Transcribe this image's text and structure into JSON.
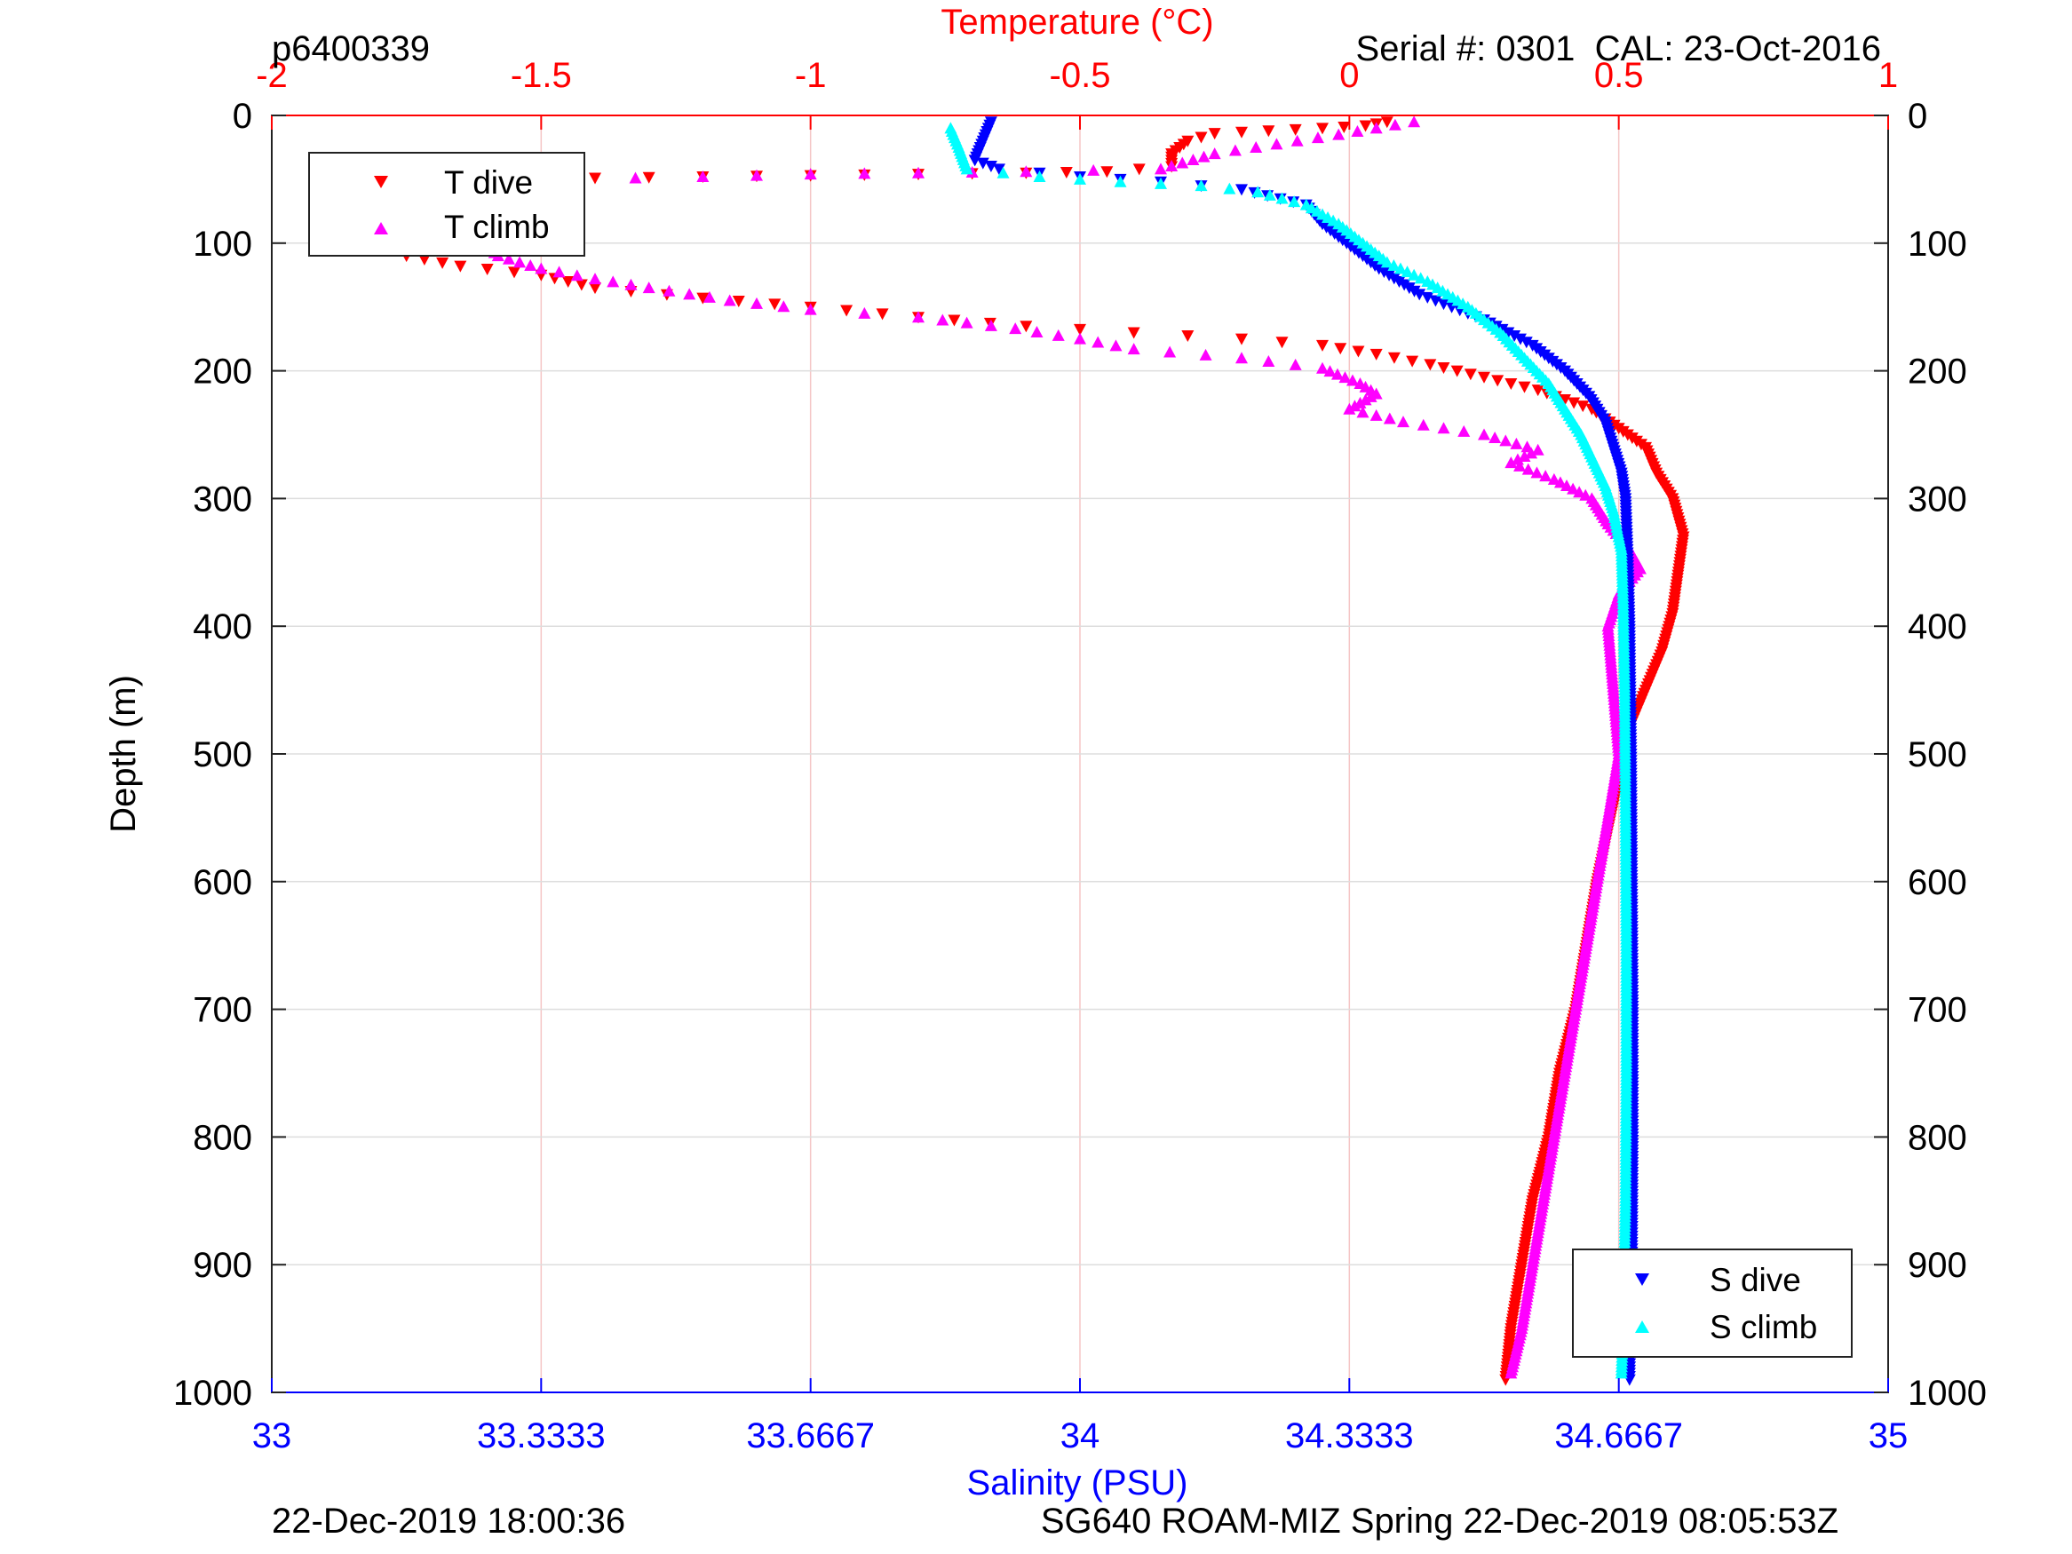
{
  "header": {
    "top_left": "p6400339",
    "top_right": "Serial #: 0301  CAL: 23-Oct-2016"
  },
  "footer": {
    "left": "22-Dec-2019 18:00:36",
    "right": "SG640 ROAM-MIZ Spring 22-Dec-2019 08:05:53Z"
  },
  "colors": {
    "temperature_axis": "#ff0000",
    "salinity_axis": "#0000ff",
    "t_dive": "#ff0000",
    "t_climb": "#ff00ff",
    "s_dive": "#0000ff",
    "s_climb": "#00ffff",
    "grid_temperature": "#f5c6c6",
    "grid_depth": "#dddddd"
  },
  "chart_data": {
    "type": "scatter",
    "top_axis_label": "Temperature (°C)",
    "bottom_axis_label": "Salinity (PSU)",
    "ylabel": "Depth (m)",
    "temperature_lim": [
      -2,
      1
    ],
    "salinity_lim": [
      33,
      35
    ],
    "ylim": [
      0,
      1000
    ],
    "y_reversed": true,
    "temperature_ticks": [
      "-2",
      "-1.5",
      "-1",
      "-0.5",
      "0",
      "0.5",
      "1"
    ],
    "salinity_ticks": [
      "33",
      "33.3333",
      "33.6667",
      "34",
      "34.3333",
      "34.6667",
      "35"
    ],
    "depth_ticks": [
      "0",
      "100",
      "200",
      "300",
      "400",
      "500",
      "600",
      "700",
      "800",
      "900",
      "1000"
    ],
    "grid": "vertical temperature gridlines, horizontal depth gridlines",
    "legends": [
      {
        "placement": "top-left",
        "entries": [
          "T dive",
          "T climb"
        ]
      },
      {
        "placement": "bottom-right",
        "entries": [
          "S dive",
          "S climb"
        ]
      }
    ],
    "series": [
      {
        "name": "T dive",
        "axis": "temperature",
        "marker": "triangle-down",
        "points": [
          [
            0.07,
            5
          ],
          [
            0.03,
            8
          ],
          [
            -0.05,
            10
          ],
          [
            -0.15,
            12
          ],
          [
            -0.25,
            14
          ],
          [
            -0.3,
            20
          ],
          [
            -0.33,
            30
          ],
          [
            -0.33,
            40
          ],
          [
            -0.45,
            44
          ],
          [
            -0.6,
            45
          ],
          [
            -0.8,
            46
          ],
          [
            -1.0,
            47
          ],
          [
            -1.2,
            48
          ],
          [
            -1.4,
            49
          ],
          [
            -1.6,
            52
          ],
          [
            -1.7,
            60
          ],
          [
            -1.72,
            75
          ],
          [
            -1.74,
            90
          ],
          [
            -1.76,
            100
          ],
          [
            -1.75,
            110
          ],
          [
            -1.65,
            118
          ],
          [
            -1.5,
            125
          ],
          [
            -1.4,
            135
          ],
          [
            -1.2,
            143
          ],
          [
            -1.0,
            150
          ],
          [
            -0.8,
            158
          ],
          [
            -0.6,
            165
          ],
          [
            -0.4,
            170
          ],
          [
            -0.2,
            175
          ],
          [
            -0.05,
            180
          ],
          [
            0.05,
            187
          ],
          [
            0.15,
            195
          ],
          [
            0.25,
            205
          ],
          [
            0.35,
            215
          ],
          [
            0.45,
            230
          ],
          [
            0.5,
            245
          ],
          [
            0.55,
            260
          ],
          [
            0.57,
            280
          ],
          [
            0.6,
            300
          ],
          [
            0.62,
            330
          ],
          [
            0.61,
            360
          ],
          [
            0.6,
            390
          ],
          [
            0.58,
            420
          ],
          [
            0.55,
            450
          ],
          [
            0.52,
            480
          ],
          [
            0.5,
            520
          ],
          [
            0.48,
            560
          ],
          [
            0.46,
            600
          ],
          [
            0.44,
            650
          ],
          [
            0.42,
            700
          ],
          [
            0.39,
            750
          ],
          [
            0.37,
            800
          ],
          [
            0.34,
            850
          ],
          [
            0.32,
            900
          ],
          [
            0.3,
            950
          ],
          [
            0.29,
            990
          ]
        ]
      },
      {
        "name": "T climb",
        "axis": "temperature",
        "marker": "triangle-up",
        "points": [
          [
            0.12,
            5
          ],
          [
            0.05,
            10
          ],
          [
            -0.02,
            15
          ],
          [
            -0.25,
            30
          ],
          [
            -0.35,
            42
          ],
          [
            -0.6,
            44
          ],
          [
            -0.8,
            45
          ],
          [
            -1.0,
            46
          ],
          [
            -1.2,
            48
          ],
          [
            -1.45,
            50
          ],
          [
            -1.6,
            55
          ],
          [
            -1.7,
            65
          ],
          [
            -1.65,
            80
          ],
          [
            -1.62,
            95
          ],
          [
            -1.58,
            110
          ],
          [
            -1.5,
            120
          ],
          [
            -1.4,
            128
          ],
          [
            -1.3,
            135
          ],
          [
            -1.15,
            145
          ],
          [
            -1.0,
            152
          ],
          [
            -0.8,
            158
          ],
          [
            -0.62,
            167
          ],
          [
            -0.5,
            175
          ],
          [
            -0.4,
            183
          ],
          [
            -0.2,
            190
          ],
          [
            -0.05,
            198
          ],
          [
            0.02,
            210
          ],
          [
            0.05,
            218
          ],
          [
            0.0,
            230
          ],
          [
            0.1,
            240
          ],
          [
            0.25,
            250
          ],
          [
            0.35,
            262
          ],
          [
            0.3,
            272
          ],
          [
            0.38,
            285
          ],
          [
            0.45,
            300
          ],
          [
            0.48,
            320
          ],
          [
            0.52,
            340
          ],
          [
            0.54,
            355
          ],
          [
            0.5,
            375
          ],
          [
            0.48,
            400
          ],
          [
            0.49,
            450
          ],
          [
            0.5,
            500
          ],
          [
            0.48,
            550
          ],
          [
            0.46,
            600
          ],
          [
            0.44,
            650
          ],
          [
            0.42,
            700
          ],
          [
            0.4,
            750
          ],
          [
            0.38,
            800
          ],
          [
            0.36,
            850
          ],
          [
            0.34,
            900
          ],
          [
            0.32,
            950
          ],
          [
            0.3,
            985
          ]
        ]
      },
      {
        "name": "S dive",
        "axis": "salinity",
        "marker": "triangle-down",
        "points": [
          [
            33.89,
            5
          ],
          [
            33.88,
            20
          ],
          [
            33.87,
            35
          ],
          [
            33.9,
            42
          ],
          [
            34.0,
            48
          ],
          [
            34.1,
            52
          ],
          [
            34.2,
            58
          ],
          [
            34.28,
            70
          ],
          [
            34.3,
            85
          ],
          [
            34.33,
            100
          ],
          [
            34.37,
            120
          ],
          [
            34.42,
            140
          ],
          [
            34.5,
            160
          ],
          [
            34.56,
            180
          ],
          [
            34.6,
            200
          ],
          [
            34.63,
            220
          ],
          [
            34.65,
            240
          ],
          [
            34.66,
            260
          ],
          [
            34.67,
            280
          ],
          [
            34.675,
            300
          ],
          [
            34.678,
            350
          ],
          [
            34.68,
            400
          ],
          [
            34.682,
            500
          ],
          [
            34.683,
            600
          ],
          [
            34.684,
            700
          ],
          [
            34.684,
            800
          ],
          [
            34.683,
            900
          ],
          [
            34.68,
            990
          ]
        ]
      },
      {
        "name": "S climb",
        "axis": "salinity",
        "marker": "triangle-up",
        "points": [
          [
            33.84,
            10
          ],
          [
            33.85,
            25
          ],
          [
            33.86,
            42
          ],
          [
            33.95,
            48
          ],
          [
            34.05,
            52
          ],
          [
            34.15,
            55
          ],
          [
            34.22,
            60
          ],
          [
            34.28,
            70
          ],
          [
            34.32,
            85
          ],
          [
            34.35,
            100
          ],
          [
            34.38,
            115
          ],
          [
            34.43,
            130
          ],
          [
            34.48,
            150
          ],
          [
            34.52,
            170
          ],
          [
            34.55,
            190
          ],
          [
            34.58,
            210
          ],
          [
            34.6,
            230
          ],
          [
            34.62,
            250
          ],
          [
            34.635,
            270
          ],
          [
            34.65,
            290
          ],
          [
            34.66,
            310
          ],
          [
            34.67,
            340
          ],
          [
            34.672,
            380
          ],
          [
            34.674,
            450
          ],
          [
            34.675,
            550
          ],
          [
            34.676,
            650
          ],
          [
            34.676,
            750
          ],
          [
            34.675,
            850
          ],
          [
            34.672,
            950
          ],
          [
            34.67,
            985
          ]
        ]
      }
    ]
  }
}
